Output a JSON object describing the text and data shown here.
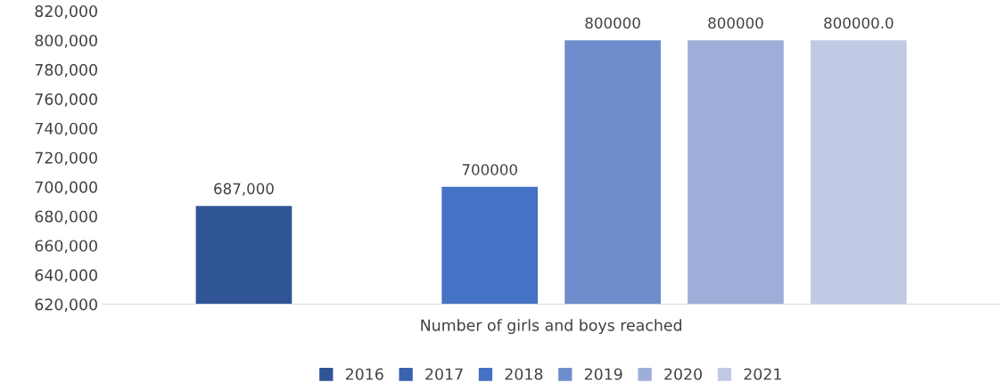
{
  "chart_data": {
    "type": "bar",
    "categories": [
      "Number of girls and boys reached"
    ],
    "series": [
      {
        "name": "2016",
        "color": "#2f5597",
        "values": [
          687000
        ],
        "value_labels": [
          "687,000"
        ]
      },
      {
        "name": "2017",
        "color": "#3a62ae",
        "values": [
          null
        ],
        "value_labels": [
          null
        ]
      },
      {
        "name": "2018",
        "color": "#4472c4",
        "values": [
          700000
        ],
        "value_labels": [
          "700000"
        ]
      },
      {
        "name": "2019",
        "color": "#6f8dcd",
        "values": [
          800000
        ],
        "value_labels": [
          "800000"
        ]
      },
      {
        "name": "2020",
        "color": "#9eaed9",
        "values": [
          800000
        ],
        "value_labels": [
          "800000"
        ]
      },
      {
        "name": "2021",
        "color": "#c0cae5",
        "values": [
          800000
        ],
        "value_labels": [
          "800000.0"
        ]
      }
    ],
    "ylim": [
      620000,
      820000
    ],
    "yticks": [
      {
        "value": 620000,
        "label": "620,000"
      },
      {
        "value": 640000,
        "label": "640,000"
      },
      {
        "value": 660000,
        "label": "660,000"
      },
      {
        "value": 680000,
        "label": "680,000"
      },
      {
        "value": 700000,
        "label": "700,000"
      },
      {
        "value": 720000,
        "label": "720,000"
      },
      {
        "value": 740000,
        "label": "740,000"
      },
      {
        "value": 760000,
        "label": "760,000"
      },
      {
        "value": 780000,
        "label": "780,000"
      },
      {
        "value": 800000,
        "label": "800,000"
      },
      {
        "value": 820000,
        "label": "820,000"
      }
    ],
    "grid": false,
    "legend": "bottom"
  }
}
